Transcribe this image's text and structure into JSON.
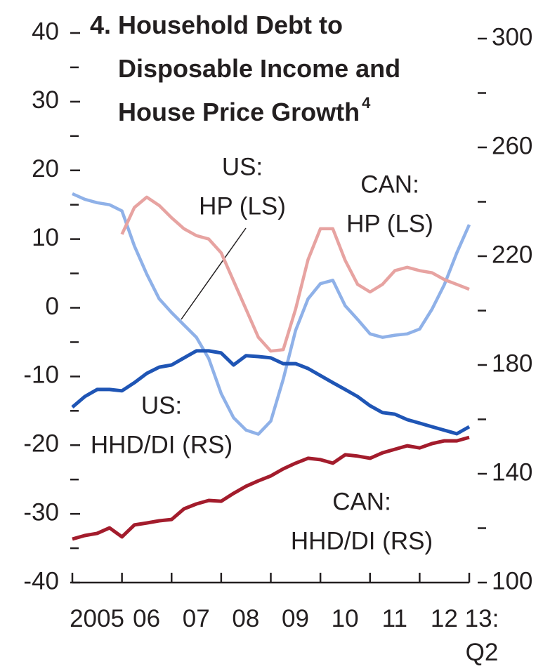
{
  "chart_data": {
    "type": "line",
    "title": [
      "4. Household Debt to",
      "Disposable Income and",
      "House Price Growth"
    ],
    "title_note": "4",
    "x": [
      2005,
      2005.25,
      2005.5,
      2005.75,
      2006,
      2006.25,
      2006.5,
      2006.75,
      2007,
      2007.25,
      2007.5,
      2007.75,
      2008,
      2008.25,
      2008.5,
      2008.75,
      2009,
      2009.25,
      2009.5,
      2009.75,
      2010,
      2010.25,
      2010.5,
      2010.75,
      2011,
      2011.25,
      2011.5,
      2011.75,
      2012,
      2012.25,
      2012.5,
      2012.75,
      2013
    ],
    "xlim": [
      2005,
      2013
    ],
    "xticks": [
      {
        "value": 2005,
        "label": "2005"
      },
      {
        "value": 2006,
        "label": "06"
      },
      {
        "value": 2007,
        "label": "07"
      },
      {
        "value": 2008,
        "label": "08"
      },
      {
        "value": 2009,
        "label": "09"
      },
      {
        "value": 2010,
        "label": "10"
      },
      {
        "value": 2011,
        "label": "11"
      },
      {
        "value": 2012,
        "label": "12"
      },
      {
        "value": 2013,
        "label": "13: Q2"
      }
    ],
    "ylim": [
      -40,
      40
    ],
    "yticks": [
      -40,
      -30,
      -20,
      -10,
      0,
      10,
      20,
      30,
      40
    ],
    "yminor_ticks": [
      -35,
      -25,
      -15,
      -5,
      5,
      15,
      25,
      35
    ],
    "y2lim": [
      100,
      300
    ],
    "y2ticks": [
      100,
      140,
      180,
      220,
      260,
      300
    ],
    "y2minor_ticks": [
      120,
      160,
      200,
      240,
      280
    ],
    "series": [
      {
        "name": "US: HP (LS)",
        "color": "#8fb1e8",
        "values": [
          16.6,
          15.8,
          15.3,
          15.0,
          14.1,
          9.0,
          4.9,
          1.3,
          -0.7,
          -2.5,
          -4.3,
          -7.4,
          -12.5,
          -16.0,
          -17.8,
          -18.4,
          -16.5,
          -10.4,
          -3.3,
          1.3,
          3.5,
          4.0,
          0.3,
          -1.7,
          -3.8,
          -4.3,
          -4.0,
          -3.8,
          -3.1,
          -0.2,
          3.4,
          8.0,
          12.1
        ]
      },
      {
        "name": "CAN: HP (LS)",
        "color": "#e7a3a1",
        "values": [
          null,
          null,
          null,
          null,
          10.7,
          14.6,
          16.1,
          14.9,
          13.1,
          11.5,
          10.5,
          10.0,
          8.0,
          3.9,
          -0.2,
          -4.3,
          -6.3,
          -6.1,
          -0.2,
          7.0,
          11.5,
          11.5,
          6.9,
          3.4,
          2.3,
          3.4,
          5.4,
          5.9,
          5.4,
          5.1,
          4.1,
          3.4,
          2.7
        ]
      },
      {
        "name": "US: HHD/DI (RS)",
        "color": "#1f55b5",
        "axis": "y2",
        "values": [
          164.5,
          168.4,
          171.0,
          171.0,
          170.5,
          173.5,
          176.9,
          179.2,
          180.0,
          182.6,
          185.2,
          185.2,
          184.4,
          180.0,
          183.4,
          183.1,
          182.6,
          180.5,
          180.5,
          178.7,
          176.1,
          173.5,
          171.0,
          168.4,
          165.0,
          162.5,
          161.9,
          159.9,
          158.6,
          157.3,
          156.0,
          154.7,
          157.3
        ]
      },
      {
        "name": "CAN: HHD/DI (RS)",
        "color": "#a31c2c",
        "axis": "y2",
        "values": [
          116.0,
          117.3,
          118.1,
          120.1,
          116.8,
          121.2,
          121.9,
          122.7,
          123.2,
          127.1,
          128.9,
          130.2,
          129.9,
          132.8,
          135.4,
          137.4,
          139.2,
          141.8,
          143.9,
          145.7,
          145.2,
          143.9,
          147.0,
          146.5,
          145.7,
          147.7,
          149.0,
          150.3,
          149.5,
          151.1,
          152.1,
          152.1,
          153.4
        ]
      }
    ],
    "annotations": [
      {
        "text": [
          "US:",
          "HP (LS)"
        ]
      },
      {
        "text": [
          "CAN:",
          "HP (LS)"
        ]
      },
      {
        "text": [
          "US:",
          "HHD/DI (RS)"
        ]
      },
      {
        "text": [
          "CAN:",
          "HHD/DI (RS)"
        ]
      }
    ]
  }
}
